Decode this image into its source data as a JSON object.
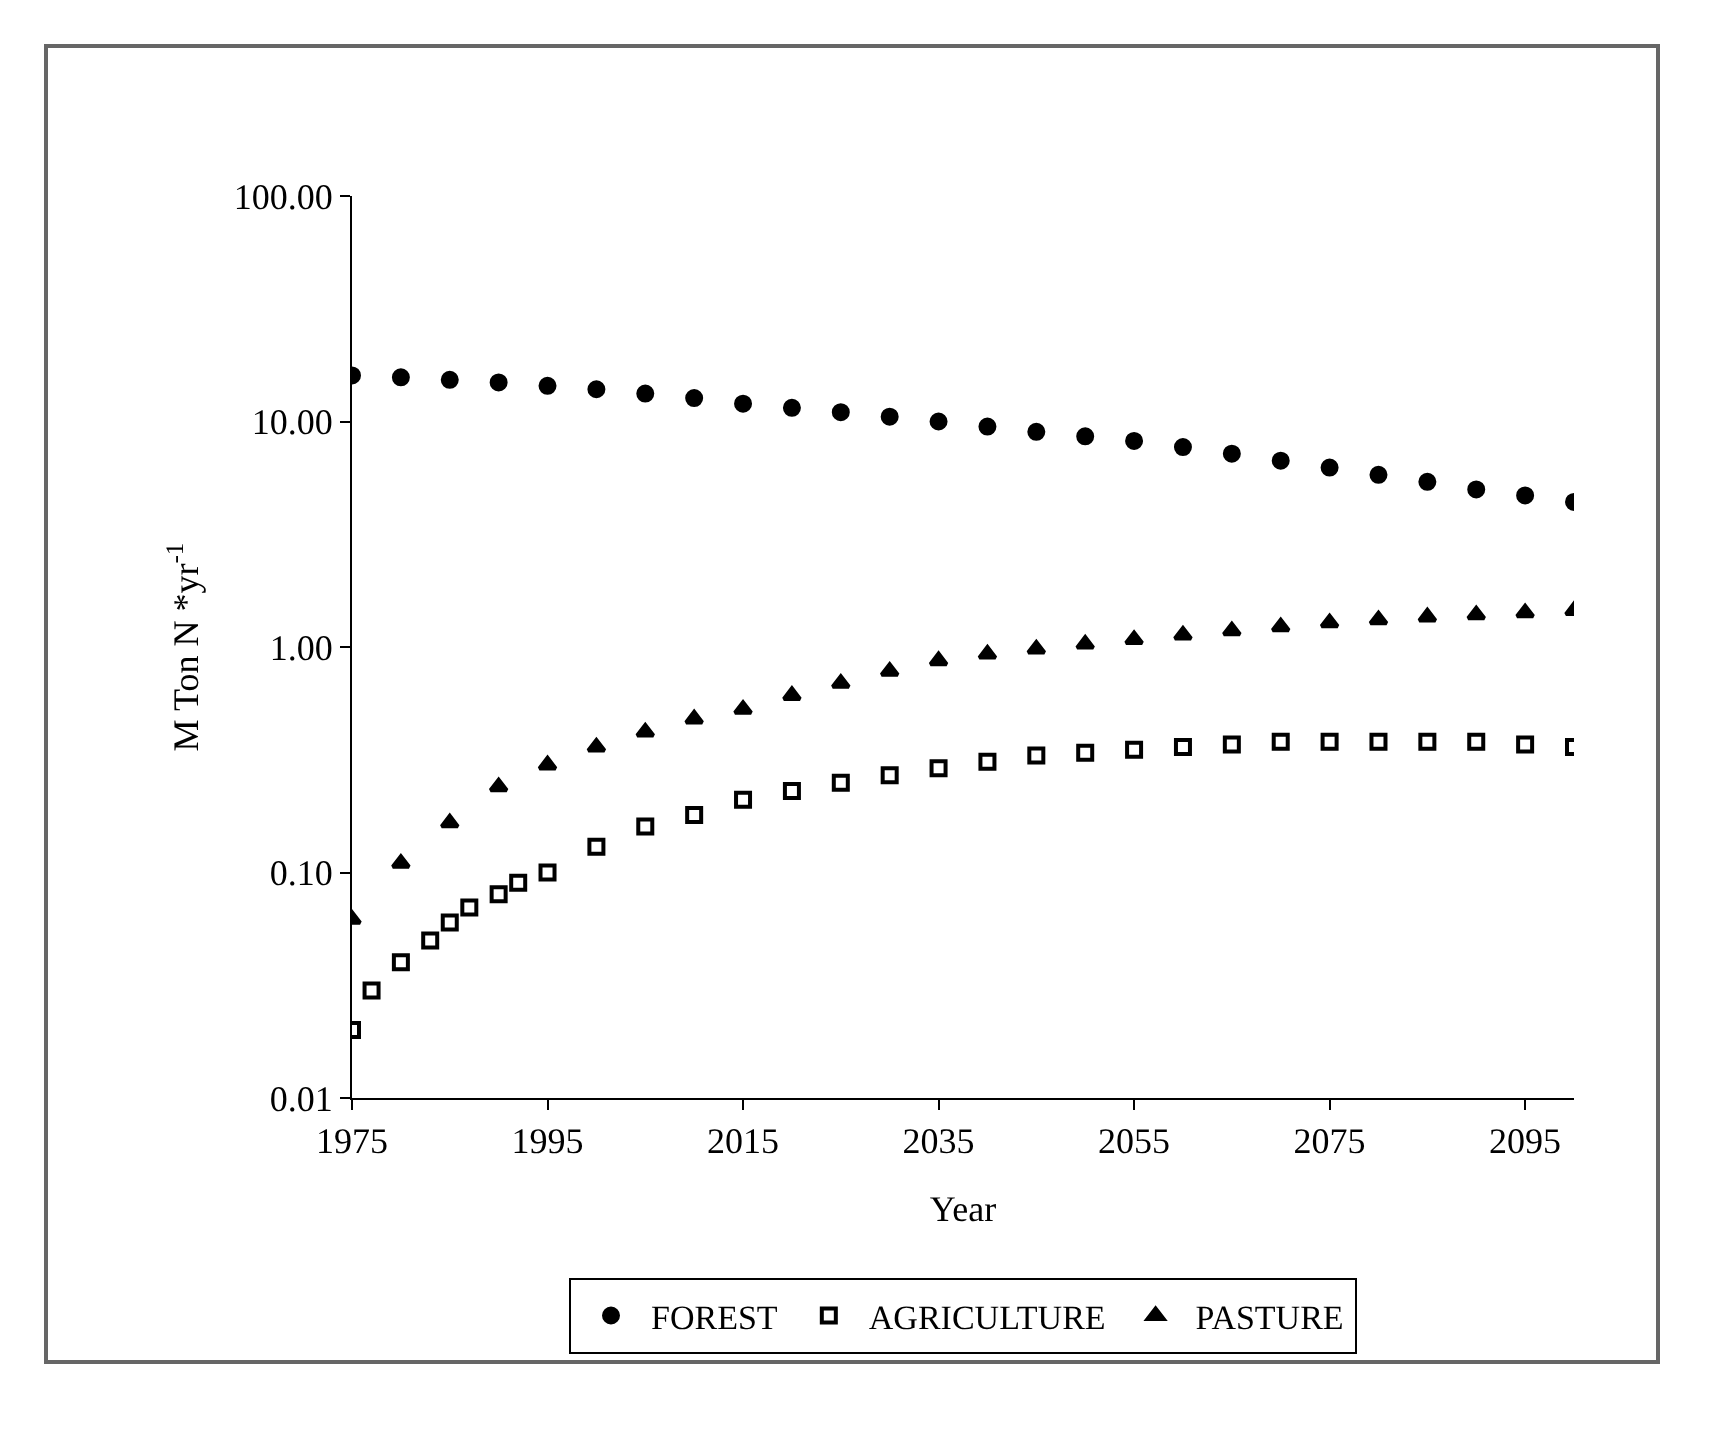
{
  "chart_data": {
    "type": "scatter",
    "xlabel": "Year",
    "ylabel": "M Ton N *yr$^{-1}$",
    "log": "y",
    "grid": false,
    "legend": "bottom",
    "xlim": [
      1975,
      2100
    ],
    "xticks": [
      1975,
      1995,
      2015,
      2035,
      2055,
      2075,
      2095
    ],
    "ylim": [
      0.01,
      100
    ],
    "yticks": [
      {
        "value": 0.01,
        "label": "0.01"
      },
      {
        "value": 0.1,
        "label": "0.10"
      },
      {
        "value": 1,
        "label": "1.00"
      },
      {
        "value": 10,
        "label": "10.00"
      },
      {
        "value": 100,
        "label": "100.00"
      }
    ],
    "x": [
      1975,
      1980,
      1985,
      1990,
      1995,
      2000,
      2005,
      2010,
      2015,
      2020,
      2025,
      2030,
      2035,
      2040,
      2045,
      2050,
      2055,
      2060,
      2065,
      2070,
      2075,
      2080,
      2085,
      2090,
      2095,
      2100
    ],
    "series": [
      {
        "name": "FOREST",
        "color": "#000000",
        "marker": "circle",
        "values": [
          16,
          15.7,
          15.3,
          14.9,
          14.4,
          13.9,
          13.3,
          12.7,
          12.0,
          11.5,
          11.0,
          10.5,
          10.0,
          9.5,
          9.0,
          8.6,
          8.2,
          7.7,
          7.2,
          6.7,
          6.25,
          5.8,
          5.4,
          5.0,
          4.7,
          4.4
        ]
      },
      {
        "name": "AGRICULTURE",
        "color": "#000000",
        "marker": "square",
        "x": [
          1975,
          1977,
          1980,
          1983,
          1985,
          1987,
          1990,
          1992,
          1995,
          2000,
          2005,
          2010,
          2015,
          2020,
          2025,
          2030,
          2035,
          2040,
          2045,
          2050,
          2055,
          2060,
          2065,
          2070,
          2075,
          2080,
          2085,
          2090,
          2095,
          2100
        ],
        "values": [
          0.02,
          0.03,
          0.04,
          0.05,
          0.06,
          0.07,
          0.08,
          0.09,
          0.1,
          0.13,
          0.16,
          0.18,
          0.21,
          0.23,
          0.25,
          0.27,
          0.29,
          0.31,
          0.33,
          0.34,
          0.35,
          0.36,
          0.37,
          0.38,
          0.38,
          0.38,
          0.38,
          0.38,
          0.37,
          0.36
        ]
      },
      {
        "name": "PASTURE",
        "color": "#000000",
        "marker": "triangle",
        "values": [
          0.062,
          0.11,
          0.166,
          0.24,
          0.3,
          0.36,
          0.42,
          0.48,
          0.53,
          0.61,
          0.69,
          0.78,
          0.87,
          0.93,
          0.98,
          1.03,
          1.08,
          1.13,
          1.18,
          1.23,
          1.28,
          1.32,
          1.36,
          1.39,
          1.42,
          1.45
        ]
      }
    ]
  }
}
